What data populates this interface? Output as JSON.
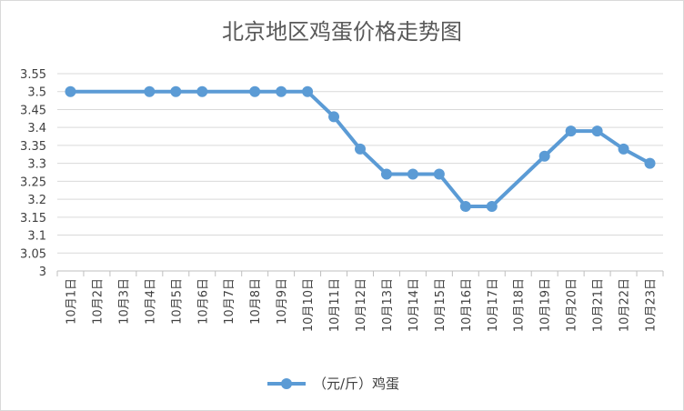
{
  "chart_data": {
    "type": "line",
    "title": "北京地区鸡蛋价格走势图",
    "xlabel": "",
    "ylabel": "",
    "categories": [
      "10月1日",
      "10月2日",
      "10月3日",
      "10月4日",
      "10月5日",
      "10月6日",
      "10月7日",
      "10月8日",
      "10月9日",
      "10月10日",
      "10月11日",
      "10月12日",
      "10月13日",
      "10月14日",
      "10月15日",
      "10月16日",
      "10月17日",
      "10月18日",
      "10月19日",
      "10月20日",
      "10月21日",
      "10月22日",
      "10月23日"
    ],
    "series": [
      {
        "name": "（元/斤）鸡蛋",
        "color": "#5b9bd5",
        "values": [
          3.5,
          null,
          null,
          3.5,
          3.5,
          3.5,
          null,
          3.5,
          3.5,
          3.5,
          3.43,
          3.34,
          3.27,
          3.27,
          3.27,
          3.18,
          3.18,
          null,
          3.32,
          3.39,
          3.39,
          3.34,
          3.3
        ]
      }
    ],
    "ylim": [
      3,
      3.55
    ],
    "yticks": [
      "3.55",
      "3.5",
      "3.45",
      "3.4",
      "3.35",
      "3.3",
      "3.25",
      "3.2",
      "3.15",
      "3.1",
      "3.05",
      "3"
    ],
    "grid": true,
    "legend": "bottom"
  }
}
